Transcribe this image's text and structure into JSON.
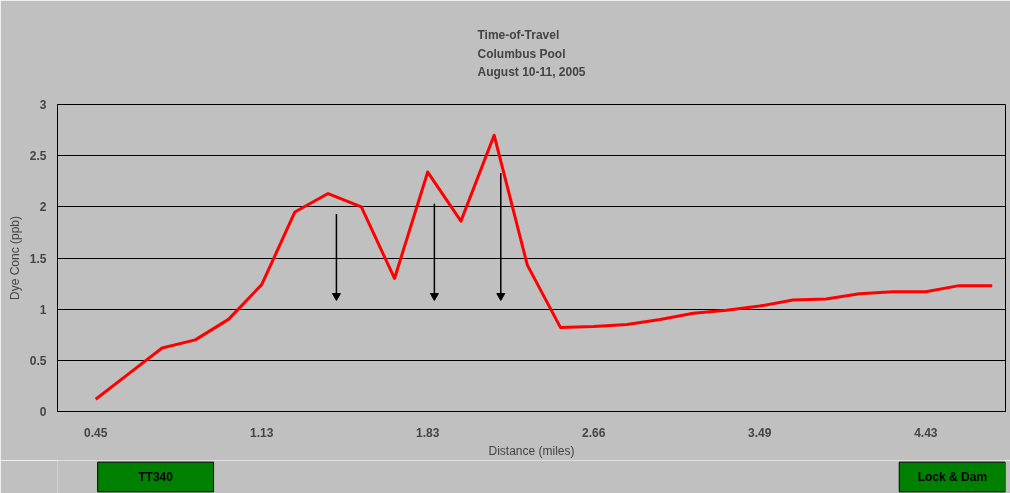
{
  "chart_data": {
    "type": "line",
    "title": "Time-of-Travel\nColumbus Pool\nAugust 10-11, 2005",
    "xlabel": "Distance (miles)",
    "ylabel": "Dye Conc (ppb)",
    "categories": [
      "0.45",
      null,
      null,
      null,
      null,
      "1.13",
      null,
      null,
      null,
      null,
      "1.83",
      null,
      null,
      null,
      null,
      "2.66",
      null,
      null,
      null,
      null,
      "3.49",
      null,
      null,
      null,
      null,
      "4.43",
      null,
      null
    ],
    "series": [
      {
        "color": "#ff0000",
        "values": [
          0.12,
          0.37,
          0.62,
          0.7,
          0.9,
          1.24,
          1.95,
          2.13,
          2.0,
          1.3,
          2.34,
          1.86,
          2.7,
          1.43,
          0.82,
          0.83,
          0.85,
          0.9,
          0.96,
          0.99,
          1.03,
          1.09,
          1.1,
          1.15,
          1.17,
          1.17,
          1.23,
          1.23
        ]
      }
    ],
    "ylim": [
      0,
      3
    ],
    "yticks": [
      0,
      0.5,
      1,
      1.5,
      2,
      2.5,
      3
    ],
    "grid": "y",
    "marker": "none",
    "line_style": "solid",
    "annotations": [
      "TT340",
      "Lock & Dam"
    ]
  }
}
